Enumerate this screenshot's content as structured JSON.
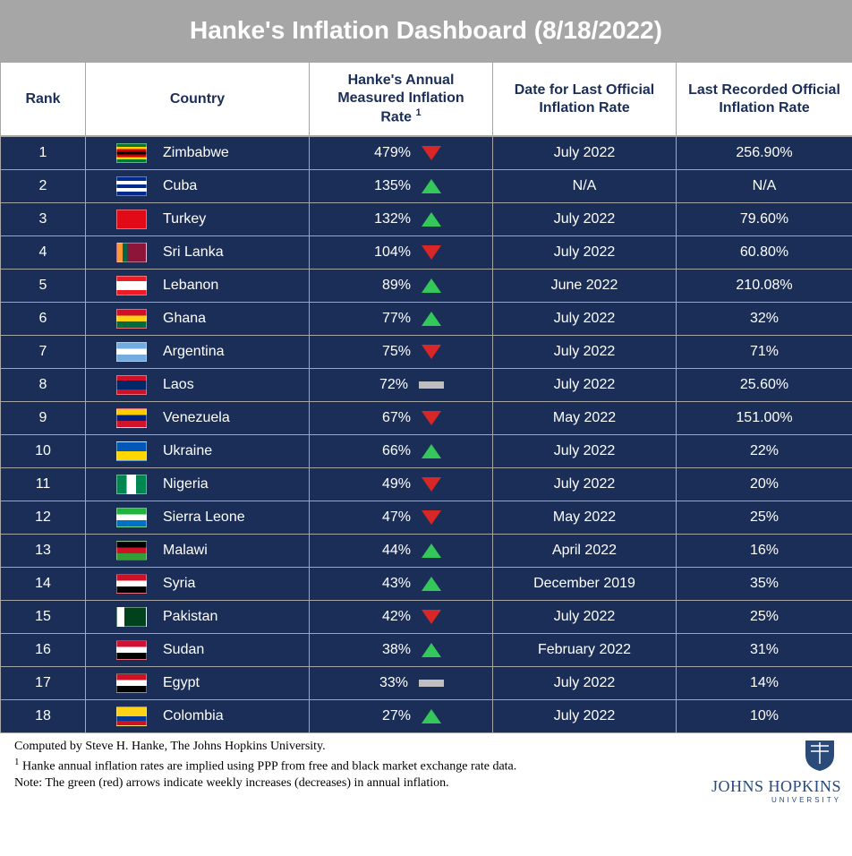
{
  "title": "Hanke's Inflation Dashboard (8/18/2022)",
  "columns": {
    "rank": "Rank",
    "country": "Country",
    "rate_line1": "Hanke's Annual",
    "rate_line2": "Measured Inflation",
    "rate_line3": "Rate",
    "rate_sup": "1",
    "date": "Date for Last Official Inflation Rate",
    "official": "Last Recorded Official Inflation Rate"
  },
  "theme": {
    "title_bg": "#a6a6a6",
    "row_bg": "#1b2e57",
    "text_white": "#ffffff",
    "header_text": "#1b2e57",
    "border": "#a6a6a6",
    "up_color": "#34c759",
    "down_color": "#d92626",
    "flat_color": "#bfbfbf"
  },
  "rows": [
    {
      "rank": "1",
      "country": "Zimbabwe",
      "flag": "ZW",
      "rate": "479%",
      "dir": "down",
      "date": "July 2022",
      "official": "256.90%"
    },
    {
      "rank": "2",
      "country": "Cuba",
      "flag": "CU",
      "rate": "135%",
      "dir": "up",
      "date": "N/A",
      "official": "N/A"
    },
    {
      "rank": "3",
      "country": "Turkey",
      "flag": "TR",
      "rate": "132%",
      "dir": "up",
      "date": "July 2022",
      "official": "79.60%"
    },
    {
      "rank": "4",
      "country": "Sri Lanka",
      "flag": "LK",
      "rate": "104%",
      "dir": "down",
      "date": "July 2022",
      "official": "60.80%"
    },
    {
      "rank": "5",
      "country": "Lebanon",
      "flag": "LB",
      "rate": "89%",
      "dir": "up",
      "date": "June 2022",
      "official": "210.08%"
    },
    {
      "rank": "6",
      "country": "Ghana",
      "flag": "GH",
      "rate": "77%",
      "dir": "up",
      "date": "July 2022",
      "official": "32%"
    },
    {
      "rank": "7",
      "country": "Argentina",
      "flag": "AR",
      "rate": "75%",
      "dir": "down",
      "date": "July 2022",
      "official": "71%"
    },
    {
      "rank": "8",
      "country": "Laos",
      "flag": "LA",
      "rate": "72%",
      "dir": "flat",
      "date": "July 2022",
      "official": "25.60%"
    },
    {
      "rank": "9",
      "country": "Venezuela",
      "flag": "VE",
      "rate": "67%",
      "dir": "down",
      "date": "May 2022",
      "official": "151.00%"
    },
    {
      "rank": "10",
      "country": "Ukraine",
      "flag": "UA",
      "rate": "66%",
      "dir": "up",
      "date": "July 2022",
      "official": "22%"
    },
    {
      "rank": "11",
      "country": "Nigeria",
      "flag": "NG",
      "rate": "49%",
      "dir": "down",
      "date": "July 2022",
      "official": "20%"
    },
    {
      "rank": "12",
      "country": "Sierra Leone",
      "flag": "SL",
      "rate": "47%",
      "dir": "down",
      "date": "May 2022",
      "official": "25%"
    },
    {
      "rank": "13",
      "country": "Malawi",
      "flag": "MW",
      "rate": "44%",
      "dir": "up",
      "date": "April 2022",
      "official": "16%"
    },
    {
      "rank": "14",
      "country": "Syria",
      "flag": "SY",
      "rate": "43%",
      "dir": "up",
      "date": "December 2019",
      "official": "35%"
    },
    {
      "rank": "15",
      "country": "Pakistan",
      "flag": "PK",
      "rate": "42%",
      "dir": "down",
      "date": "July 2022",
      "official": "25%"
    },
    {
      "rank": "16",
      "country": "Sudan",
      "flag": "SD",
      "rate": "38%",
      "dir": "up",
      "date": "February 2022",
      "official": "31%"
    },
    {
      "rank": "17",
      "country": "Egypt",
      "flag": "EG",
      "rate": "33%",
      "dir": "flat",
      "date": "July 2022",
      "official": "14%"
    },
    {
      "rank": "18",
      "country": "Colombia",
      "flag": "CO",
      "rate": "27%",
      "dir": "up",
      "date": "July 2022",
      "official": "10%"
    }
  ],
  "footnotes": {
    "line1": "Computed by Steve H. Hanke, The Johns Hopkins University.",
    "line2_sup": "1",
    "line2": " Hanke annual inflation rates are implied using PPP from free and black market exchange rate data.",
    "line3": "Note: The green (red) arrows indicate weekly increases (decreases) in annual inflation."
  },
  "logo": {
    "name": "JOHNS HOPKINS",
    "sub": "UNIVERSITY"
  },
  "flags": {
    "ZW": "linear-gradient(to bottom,#007a33 0 14%,#ffd200 14% 28%,#d40000 28% 42%,#000 42% 58%,#d40000 58% 72%,#ffd200 72% 86%,#007a33 86% 100%)",
    "CU": "repeating-linear-gradient(to bottom,#002a8f 0 20%,#fff 20% 40%,#002a8f 40% 60%,#fff 60% 80%,#002a8f 80% 100%)",
    "TR": "linear-gradient(#e30a17,#e30a17)",
    "LK": "linear-gradient(90deg,#ff9933 0 18%,#006747 18% 36%,#8d153a 36% 100%)",
    "LB": "linear-gradient(to bottom,#ed1c24 0 25%,#fff 25% 75%,#ed1c24 75% 100%)",
    "GH": "linear-gradient(to bottom,#ce1126 0 33%,#fcd116 33% 66%,#006b3f 66% 100%)",
    "AR": "linear-gradient(to bottom,#74acdf 0 33%,#fff 33% 66%,#74acdf 66% 100%)",
    "LA": "linear-gradient(to bottom,#ce1126 0 25%,#002868 25% 75%,#ce1126 75% 100%)",
    "VE": "linear-gradient(to bottom,#ffcc00 0 33%,#00247d 33% 66%,#cf142b 66% 100%)",
    "UA": "linear-gradient(to bottom,#0057b7 0 50%,#ffd700 50% 100%)",
    "NG": "linear-gradient(90deg,#008751 0 33%,#fff 33% 66%,#008751 66% 100%)",
    "SL": "linear-gradient(to bottom,#1eb53a 0 33%,#fff 33% 66%,#0072c6 66% 100%)",
    "MW": "linear-gradient(to bottom,#000 0 33%,#ce1126 33% 66%,#339e35 66% 100%)",
    "SY": "linear-gradient(to bottom,#ce1126 0 33%,#fff 33% 66%,#000 66% 100%)",
    "PK": "linear-gradient(90deg,#fff 0 25%,#01411c 25% 100%)",
    "SD": "linear-gradient(to bottom,#d21034 0 33%,#fff 33% 66%,#000 66% 100%)",
    "EG": "linear-gradient(to bottom,#ce1126 0 33%,#fff 33% 66%,#000 66% 100%)",
    "CO": "linear-gradient(to bottom,#fcd116 0 50%,#003893 50% 75%,#ce1126 75% 100%)"
  }
}
